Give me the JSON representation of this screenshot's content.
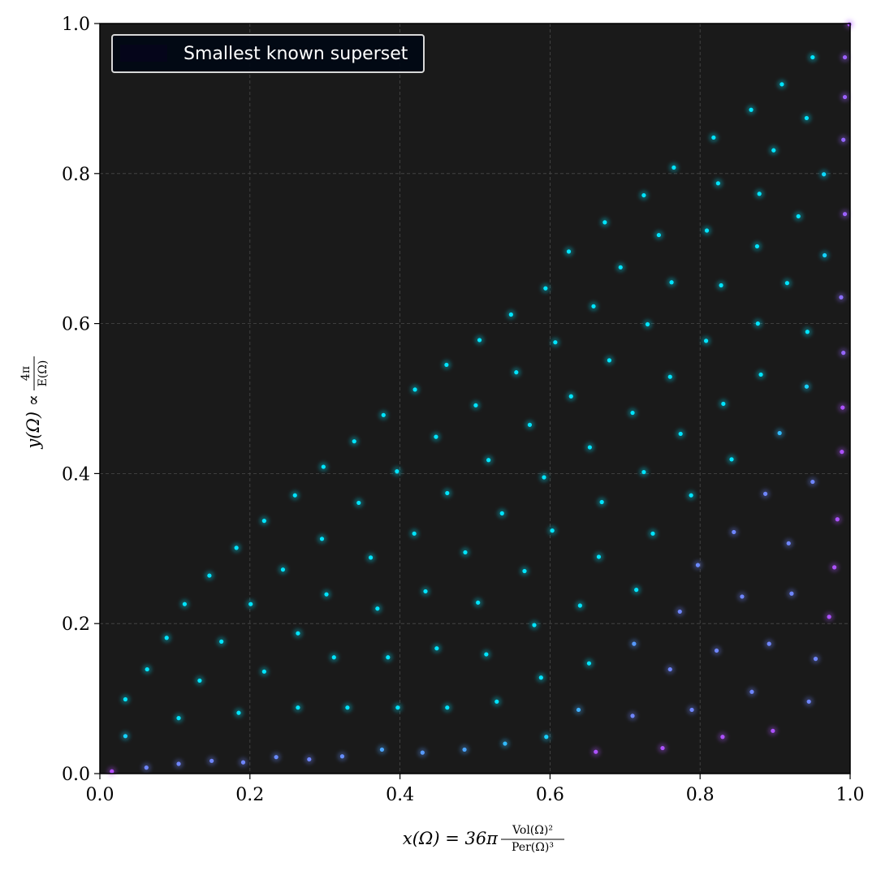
{
  "chart_data": {
    "type": "scatter",
    "title": "",
    "xlim": [
      0,
      1
    ],
    "ylim": [
      0,
      1
    ],
    "grid": true,
    "background": "#1a1a1a",
    "xticks": [
      "0.0",
      "0.2",
      "0.4",
      "0.6",
      "0.8",
      "1.0"
    ],
    "yticks": [
      "0.0",
      "0.2",
      "0.4",
      "0.6",
      "0.8",
      "1.0"
    ],
    "xlabel": {
      "lhs": "x(Ω) = 36π",
      "numerator": "Vol(Ω)²",
      "denominator": "Per(Ω)³"
    },
    "ylabel": {
      "lhs": "y(Ω) ∝",
      "numerator": "4π",
      "denominator": "E(Ω)"
    },
    "legend": {
      "position": "top-left",
      "label": "Smallest known superset",
      "swatch_color": "#05051a"
    },
    "colors": {
      "cyan": "#00e5ff",
      "blue": "#6f86ff",
      "purple": "#b44cff"
    },
    "points": [
      [
        0.016,
        0.003
      ],
      [
        0.062,
        0.008
      ],
      [
        0.105,
        0.013
      ],
      [
        0.149,
        0.017
      ],
      [
        0.191,
        0.015
      ],
      [
        0.235,
        0.022
      ],
      [
        0.279,
        0.019
      ],
      [
        0.323,
        0.023
      ],
      [
        0.376,
        0.032
      ],
      [
        0.43,
        0.028
      ],
      [
        0.486,
        0.032
      ],
      [
        0.54,
        0.04
      ],
      [
        0.595,
        0.049
      ],
      [
        0.661,
        0.029
      ],
      [
        0.75,
        0.034
      ],
      [
        0.83,
        0.049
      ],
      [
        0.897,
        0.057
      ],
      [
        0.945,
        0.096
      ],
      [
        0.034,
        0.05
      ],
      [
        0.105,
        0.074
      ],
      [
        0.185,
        0.081
      ],
      [
        0.264,
        0.088
      ],
      [
        0.33,
        0.088
      ],
      [
        0.397,
        0.088
      ],
      [
        0.463,
        0.088
      ],
      [
        0.529,
        0.096
      ],
      [
        0.638,
        0.085
      ],
      [
        0.71,
        0.077
      ],
      [
        0.789,
        0.085
      ],
      [
        0.869,
        0.109
      ],
      [
        0.954,
        0.153
      ],
      [
        0.034,
        0.099
      ],
      [
        0.133,
        0.124
      ],
      [
        0.219,
        0.136
      ],
      [
        0.312,
        0.155
      ],
      [
        0.384,
        0.155
      ],
      [
        0.449,
        0.167
      ],
      [
        0.515,
        0.159
      ],
      [
        0.588,
        0.128
      ],
      [
        0.652,
        0.147
      ],
      [
        0.712,
        0.173
      ],
      [
        0.76,
        0.139
      ],
      [
        0.822,
        0.164
      ],
      [
        0.892,
        0.173
      ],
      [
        0.972,
        0.209
      ],
      [
        0.063,
        0.139
      ],
      [
        0.162,
        0.176
      ],
      [
        0.264,
        0.187
      ],
      [
        0.302,
        0.239
      ],
      [
        0.37,
        0.22
      ],
      [
        0.434,
        0.243
      ],
      [
        0.504,
        0.228
      ],
      [
        0.579,
        0.198
      ],
      [
        0.64,
        0.224
      ],
      [
        0.715,
        0.245
      ],
      [
        0.773,
        0.216
      ],
      [
        0.856,
        0.236
      ],
      [
        0.922,
        0.24
      ],
      [
        0.979,
        0.275
      ],
      [
        0.089,
        0.181
      ],
      [
        0.201,
        0.226
      ],
      [
        0.244,
        0.272
      ],
      [
        0.361,
        0.288
      ],
      [
        0.487,
        0.295
      ],
      [
        0.566,
        0.27
      ],
      [
        0.665,
        0.289
      ],
      [
        0.737,
        0.32
      ],
      [
        0.797,
        0.278
      ],
      [
        0.845,
        0.322
      ],
      [
        0.918,
        0.307
      ],
      [
        0.983,
        0.339
      ],
      [
        0.113,
        0.226
      ],
      [
        0.296,
        0.313
      ],
      [
        0.419,
        0.32
      ],
      [
        0.536,
        0.347
      ],
      [
        0.603,
        0.324
      ],
      [
        0.669,
        0.362
      ],
      [
        0.788,
        0.371
      ],
      [
        0.887,
        0.373
      ],
      [
        0.95,
        0.389
      ],
      [
        0.989,
        0.429
      ],
      [
        0.146,
        0.264
      ],
      [
        0.182,
        0.301
      ],
      [
        0.219,
        0.337
      ],
      [
        0.26,
        0.371
      ],
      [
        0.345,
        0.361
      ],
      [
        0.463,
        0.374
      ],
      [
        0.592,
        0.395
      ],
      [
        0.725,
        0.402
      ],
      [
        0.842,
        0.419
      ],
      [
        0.906,
        0.454
      ],
      [
        0.99,
        0.488
      ],
      [
        0.298,
        0.409
      ],
      [
        0.339,
        0.443
      ],
      [
        0.396,
        0.403
      ],
      [
        0.448,
        0.449
      ],
      [
        0.518,
        0.418
      ],
      [
        0.573,
        0.465
      ],
      [
        0.653,
        0.435
      ],
      [
        0.71,
        0.481
      ],
      [
        0.774,
        0.453
      ],
      [
        0.831,
        0.493
      ],
      [
        0.942,
        0.516
      ],
      [
        0.991,
        0.561
      ],
      [
        0.378,
        0.478
      ],
      [
        0.42,
        0.512
      ],
      [
        0.462,
        0.545
      ],
      [
        0.501,
        0.491
      ],
      [
        0.555,
        0.535
      ],
      [
        0.628,
        0.503
      ],
      [
        0.679,
        0.551
      ],
      [
        0.76,
        0.529
      ],
      [
        0.881,
        0.532
      ],
      [
        0.506,
        0.578
      ],
      [
        0.548,
        0.612
      ],
      [
        0.607,
        0.575
      ],
      [
        0.73,
        0.599
      ],
      [
        0.808,
        0.577
      ],
      [
        0.877,
        0.6
      ],
      [
        0.943,
        0.589
      ],
      [
        0.988,
        0.635
      ],
      [
        0.594,
        0.647
      ],
      [
        0.658,
        0.623
      ],
      [
        0.762,
        0.655
      ],
      [
        0.828,
        0.651
      ],
      [
        0.916,
        0.654
      ],
      [
        0.625,
        0.696
      ],
      [
        0.694,
        0.675
      ],
      [
        0.745,
        0.718
      ],
      [
        0.809,
        0.724
      ],
      [
        0.876,
        0.703
      ],
      [
        0.966,
        0.691
      ],
      [
        0.673,
        0.735
      ],
      [
        0.725,
        0.771
      ],
      [
        0.879,
        0.773
      ],
      [
        0.931,
        0.743
      ],
      [
        0.993,
        0.746
      ],
      [
        0.765,
        0.808
      ],
      [
        0.818,
        0.848
      ],
      [
        0.824,
        0.787
      ],
      [
        0.898,
        0.831
      ],
      [
        0.965,
        0.799
      ],
      [
        0.868,
        0.885
      ],
      [
        0.909,
        0.919
      ],
      [
        0.942,
        0.874
      ],
      [
        0.991,
        0.845
      ],
      [
        0.95,
        0.955
      ],
      [
        0.993,
        0.955
      ],
      [
        0.993,
        0.902
      ],
      [
        0.999,
        0.999
      ]
    ]
  }
}
